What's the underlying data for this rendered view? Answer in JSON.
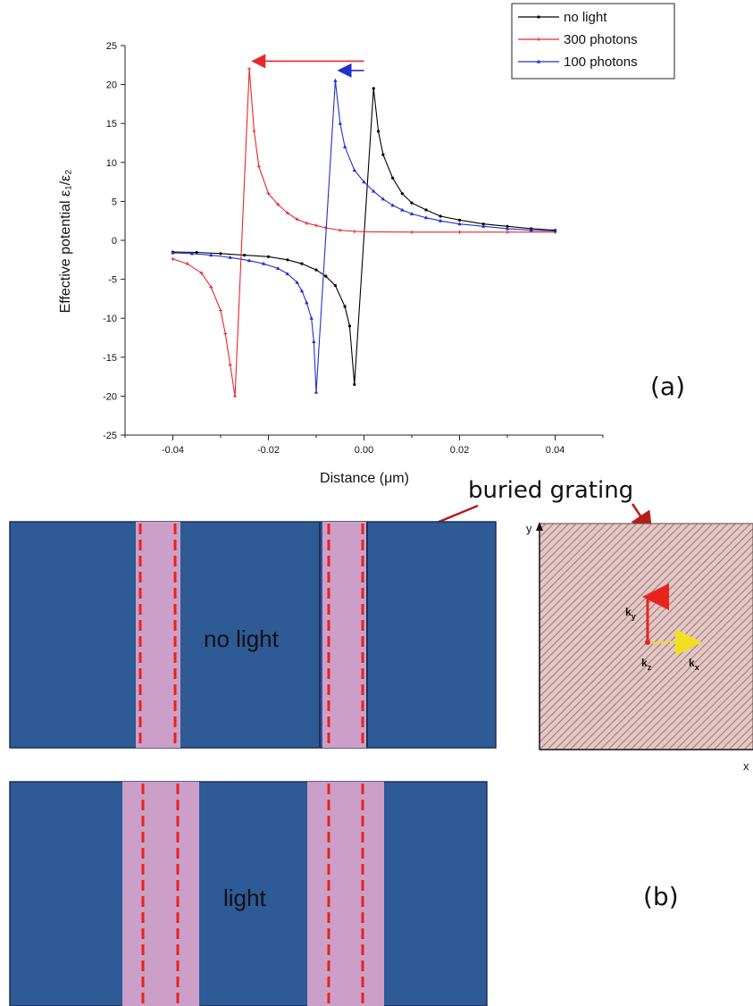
{
  "chart_data": {
    "type": "line",
    "title": "",
    "xlabel": "Distance (μm)",
    "ylabel": "Effective potential  ε₁/ε₂",
    "xlim": [
      -0.05,
      0.05
    ],
    "ylim": [
      -25,
      25
    ],
    "x_ticks": [
      -0.04,
      -0.02,
      0.0,
      0.02,
      0.04
    ],
    "x_tick_labels": [
      "-0.04",
      "-0.02",
      "0.00",
      "0.02",
      "0.04"
    ],
    "y_ticks": [
      -25,
      -20,
      -15,
      -10,
      -5,
      0,
      5,
      10,
      15,
      20,
      25
    ],
    "y_tick_labels": [
      "-25",
      "-20",
      "-15",
      "-10",
      "-5",
      "0",
      "5",
      "10",
      "15",
      "20",
      "25"
    ],
    "grid": false,
    "legend_position": "top-right",
    "series": [
      {
        "name": "no light",
        "color": "#000000",
        "marker": "circle",
        "points": [
          [
            -0.04,
            -1.5
          ],
          [
            -0.035,
            -1.55
          ],
          [
            -0.03,
            -1.7
          ],
          [
            -0.025,
            -1.9
          ],
          [
            -0.02,
            -2.1
          ],
          [
            -0.016,
            -2.5
          ],
          [
            -0.013,
            -3.0
          ],
          [
            -0.01,
            -3.8
          ],
          [
            -0.008,
            -4.6
          ],
          [
            -0.006,
            -5.8
          ],
          [
            -0.004,
            -8.5
          ],
          [
            -0.003,
            -11.0
          ],
          [
            -0.002,
            -18.5
          ],
          [
            0.002,
            19.5
          ],
          [
            0.003,
            14.0
          ],
          [
            0.004,
            11.0
          ],
          [
            0.006,
            8.0
          ],
          [
            0.008,
            6.0
          ],
          [
            0.01,
            4.8
          ],
          [
            0.013,
            3.9
          ],
          [
            0.016,
            3.1
          ],
          [
            0.02,
            2.6
          ],
          [
            0.025,
            2.1
          ],
          [
            0.03,
            1.8
          ],
          [
            0.035,
            1.5
          ],
          [
            0.04,
            1.3
          ]
        ]
      },
      {
        "name": "300 photons",
        "color": "#e8262a",
        "marker": "plus",
        "points": [
          [
            -0.04,
            -2.4
          ],
          [
            -0.037,
            -3.0
          ],
          [
            -0.034,
            -4.2
          ],
          [
            -0.032,
            -6.0
          ],
          [
            -0.03,
            -9.0
          ],
          [
            -0.029,
            -12.0
          ],
          [
            -0.028,
            -16.0
          ],
          [
            -0.027,
            -20.0
          ],
          [
            -0.024,
            22.0
          ],
          [
            -0.023,
            14.0
          ],
          [
            -0.022,
            9.5
          ],
          [
            -0.02,
            6.0
          ],
          [
            -0.018,
            4.6
          ],
          [
            -0.016,
            3.5
          ],
          [
            -0.014,
            2.7
          ],
          [
            -0.012,
            2.2
          ],
          [
            -0.01,
            1.9
          ],
          [
            -0.008,
            1.6
          ],
          [
            -0.005,
            1.3
          ],
          [
            -0.002,
            1.15
          ],
          [
            0.0,
            1.1
          ],
          [
            0.01,
            1.05
          ],
          [
            0.02,
            1.05
          ],
          [
            0.03,
            1.05
          ],
          [
            0.04,
            1.05
          ]
        ]
      },
      {
        "name": "100 photons",
        "color": "#2030c8",
        "marker": "triangle",
        "points": [
          [
            -0.04,
            -1.6
          ],
          [
            -0.036,
            -1.7
          ],
          [
            -0.032,
            -1.9
          ],
          [
            -0.028,
            -2.2
          ],
          [
            -0.024,
            -2.6
          ],
          [
            -0.021,
            -3.0
          ],
          [
            -0.018,
            -3.6
          ],
          [
            -0.016,
            -4.3
          ],
          [
            -0.014,
            -5.4
          ],
          [
            -0.013,
            -6.5
          ],
          [
            -0.012,
            -8.0
          ],
          [
            -0.011,
            -10.0
          ],
          [
            -0.0105,
            -13.0
          ],
          [
            -0.01,
            -19.5
          ],
          [
            -0.006,
            20.5
          ],
          [
            -0.005,
            15.0
          ],
          [
            -0.004,
            12.0
          ],
          [
            -0.002,
            9.0
          ],
          [
            0.0,
            7.5
          ],
          [
            0.002,
            6.3
          ],
          [
            0.004,
            5.3
          ],
          [
            0.006,
            4.5
          ],
          [
            0.008,
            3.9
          ],
          [
            0.01,
            3.4
          ],
          [
            0.013,
            2.9
          ],
          [
            0.016,
            2.5
          ],
          [
            0.02,
            2.1
          ],
          [
            0.025,
            1.8
          ],
          [
            0.03,
            1.5
          ],
          [
            0.035,
            1.3
          ],
          [
            0.04,
            1.2
          ]
        ]
      }
    ],
    "annotations": [
      {
        "type": "arrow",
        "color": "#e8262a",
        "from": [
          0.0,
          23.0
        ],
        "to": [
          -0.023,
          23.0
        ]
      },
      {
        "type": "arrow",
        "color": "#2030c8",
        "from": [
          0.0,
          21.8
        ],
        "to": [
          -0.005,
          21.8
        ]
      }
    ]
  },
  "panel_a_label": "(a)",
  "panel_b_label": "(b)",
  "buried_grating_label": "buried grating",
  "no_light_label": "no light",
  "light_label": "light",
  "square_axis_x": "x",
  "square_axis_y": "y",
  "kx": "k",
  "kx_sub": "x",
  "ky": "k",
  "ky_sub": "y",
  "kz": "k",
  "kz_sub": "z",
  "colors": {
    "structure_blue": "#2e5a96",
    "structure_border": "#1c2f55",
    "grating_pink": "#cc9fc8",
    "dashed_red": "#e8231e",
    "arrow_red": "#b71c1c",
    "hatch_bg": "#e6c6c4",
    "hatch_line": "#8c7a7a"
  }
}
